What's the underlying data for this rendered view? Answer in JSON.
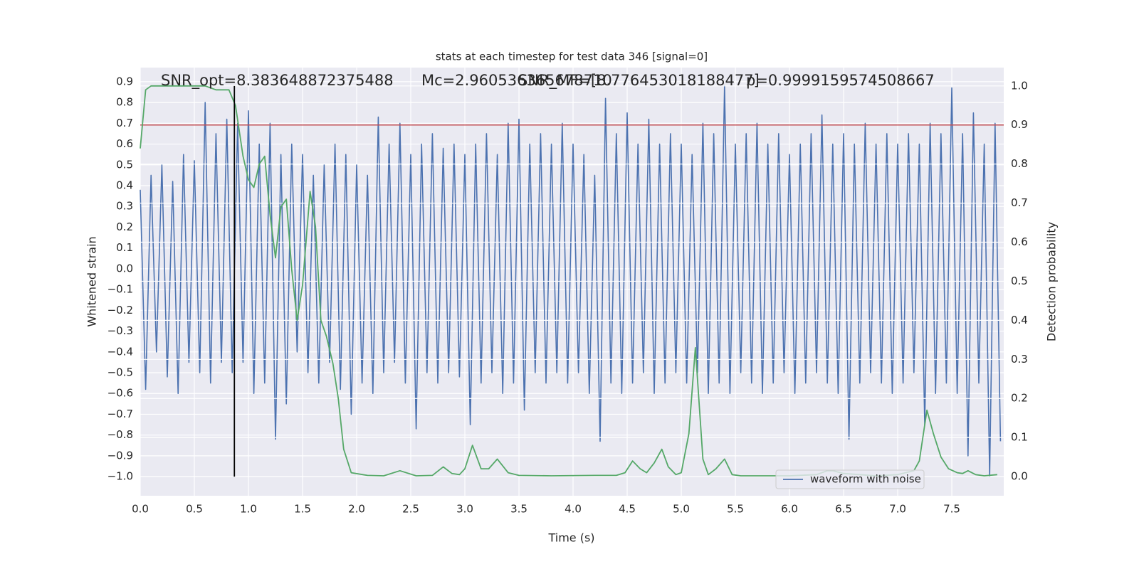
{
  "chart_data": {
    "type": "line",
    "title": "stats at each timestep for test data 346 [signal=0]",
    "xlabel": "Time (s)",
    "ylabel": "Whitened strain",
    "y2label": "Detection probability",
    "annotations": [
      "SNR_opt=8.383648872375488",
      "Mc=2.960536365678710",
      "SNR_MF=[8.776453018188477]",
      "p=0.9999159574508667"
    ],
    "background": "#eaeaf2",
    "grid": true,
    "legend": "lower right",
    "xlim": [
      0,
      7.98
    ],
    "ylim": [
      -1.092,
      0.968
    ],
    "y2lim": [
      -0.049,
      1.047
    ],
    "xticks": [
      {
        "value": 0,
        "label": "0.0"
      },
      0.5,
      {
        "value": 1,
        "label": "1.0"
      },
      1.5,
      {
        "value": 2,
        "label": "2.0"
      },
      2.5,
      {
        "value": 3,
        "label": "3.0"
      },
      3.5,
      {
        "value": 4,
        "label": "4.0"
      },
      4.5,
      {
        "value": 5,
        "label": "5.0"
      },
      5.5,
      {
        "value": 6,
        "label": "6.0"
      },
      6.5,
      {
        "value": 7,
        "label": "7.0"
      },
      7.5
    ],
    "yticks": [
      {
        "value": -1,
        "label": "−1.0"
      },
      {
        "value": -0.9,
        "label": "−0.9"
      },
      {
        "value": -0.8,
        "label": "−0.8"
      },
      {
        "value": -0.7,
        "label": "−0.7"
      },
      {
        "value": -0.6,
        "label": "−0.6"
      },
      {
        "value": -0.5,
        "label": "−0.5"
      },
      {
        "value": -0.4,
        "label": "−0.4"
      },
      {
        "value": -0.3,
        "label": "−0.3"
      },
      {
        "value": -0.2,
        "label": "−0.2"
      },
      {
        "value": -0.1,
        "label": "−0.1"
      },
      {
        "value": 0,
        "label": "0.0"
      },
      0.1,
      0.2,
      0.3,
      0.4,
      0.5,
      0.6,
      0.7,
      0.8,
      0.9
    ],
    "y2ticks": [
      {
        "value": 0,
        "label": "0.0"
      },
      0.1,
      0.2,
      0.3,
      0.4,
      0.5,
      0.6,
      0.7,
      0.8,
      0.9,
      {
        "value": 1,
        "label": "1.0"
      }
    ],
    "hlines": [
      {
        "value": 0.9,
        "axis": "y2",
        "color": "#c44e52"
      }
    ],
    "vlines": [
      {
        "x": 0.87,
        "ymin": 0,
        "ymax": 1,
        "axis": "y2",
        "color": "#000000"
      }
    ],
    "series": [
      {
        "name": "waveform with noise",
        "color": "#4c72b0",
        "axis": "y",
        "x": [
          0,
          0.05,
          0.1,
          0.15,
          0.2,
          0.25,
          0.3,
          0.35,
          0.4,
          0.45,
          0.5,
          0.55,
          0.6,
          0.65,
          0.7,
          0.75,
          0.8,
          0.85,
          0.9,
          0.95,
          1,
          1.05,
          1.1,
          1.15,
          1.2,
          1.25,
          1.3,
          1.35,
          1.4,
          1.45,
          1.5,
          1.55,
          1.6,
          1.65,
          1.7,
          1.75,
          1.8,
          1.85,
          1.9,
          1.95,
          2,
          2.05,
          2.1,
          2.15,
          2.2,
          2.25,
          2.3,
          2.35,
          2.4,
          2.45,
          2.5,
          2.55,
          2.6,
          2.65,
          2.7,
          2.75,
          2.8,
          2.85,
          2.9,
          2.95,
          3,
          3.05,
          3.1,
          3.15,
          3.2,
          3.25,
          3.3,
          3.35,
          3.4,
          3.45,
          3.5,
          3.55,
          3.6,
          3.65,
          3.7,
          3.75,
          3.8,
          3.85,
          3.9,
          3.95,
          4,
          4.05,
          4.1,
          4.15,
          4.2,
          4.25,
          4.3,
          4.35,
          4.4,
          4.45,
          4.5,
          4.55,
          4.6,
          4.65,
          4.7,
          4.75,
          4.8,
          4.85,
          4.9,
          4.95,
          5,
          5.05,
          5.1,
          5.15,
          5.2,
          5.25,
          5.3,
          5.35,
          5.4,
          5.45,
          5.5,
          5.55,
          5.6,
          5.65,
          5.7,
          5.75,
          5.8,
          5.85,
          5.9,
          5.95,
          6,
          6.05,
          6.1,
          6.15,
          6.2,
          6.25,
          6.3,
          6.35,
          6.4,
          6.45,
          6.5,
          6.55,
          6.6,
          6.65,
          6.7,
          6.75,
          6.8,
          6.85,
          6.9,
          6.95,
          7,
          7.05,
          7.1,
          7.15,
          7.2,
          7.25,
          7.3,
          7.35,
          7.4,
          7.45,
          7.5,
          7.55,
          7.6,
          7.65,
          7.7,
          7.75,
          7.8,
          7.85,
          7.9,
          7.95
        ],
        "values": [
          0.38,
          -0.58,
          0.45,
          -0.4,
          0.5,
          -0.52,
          0.42,
          -0.6,
          0.55,
          -0.45,
          0.52,
          -0.5,
          0.8,
          -0.55,
          0.65,
          -0.45,
          0.72,
          -0.5,
          0.7,
          -0.45,
          0.76,
          -0.6,
          0.6,
          -0.55,
          0.7,
          -0.82,
          0.55,
          -0.65,
          0.6,
          -0.4,
          0.55,
          -0.5,
          0.45,
          -0.55,
          0.5,
          -0.45,
          0.6,
          -0.58,
          0.55,
          -0.7,
          0.5,
          -0.55,
          0.45,
          -0.6,
          0.73,
          -0.5,
          0.6,
          -0.45,
          0.7,
          -0.55,
          0.55,
          -0.77,
          0.6,
          -0.5,
          0.65,
          -0.55,
          0.58,
          -0.5,
          0.6,
          -0.52,
          0.55,
          -0.75,
          0.6,
          -0.55,
          0.65,
          -0.5,
          0.55,
          -0.6,
          0.7,
          -0.55,
          0.72,
          -0.68,
          0.6,
          -0.5,
          0.65,
          -0.55,
          0.6,
          -0.5,
          0.7,
          -0.55,
          0.6,
          -0.5,
          0.55,
          -0.6,
          0.45,
          -0.83,
          0.82,
          -0.55,
          0.65,
          -0.6,
          0.75,
          -0.55,
          0.6,
          -0.5,
          0.72,
          -0.6,
          0.6,
          -0.55,
          0.65,
          -0.5,
          0.6,
          -0.55,
          0.55,
          -0.5,
          0.7,
          -0.6,
          0.65,
          -0.55,
          0.88,
          -0.6,
          0.6,
          -0.5,
          0.65,
          -0.55,
          0.7,
          -0.6,
          0.6,
          -0.55,
          0.65,
          -0.5,
          0.55,
          -0.6,
          0.6,
          -0.55,
          0.65,
          -0.5,
          0.74,
          -0.55,
          0.6,
          -0.6,
          0.65,
          -0.82,
          0.6,
          -0.55,
          0.7,
          -0.5,
          0.6,
          -0.55,
          0.65,
          -0.6,
          0.6,
          -0.55,
          0.65,
          -0.5,
          0.6,
          -0.75,
          0.7,
          -0.6,
          0.65,
          -0.55,
          0.87,
          -0.6,
          0.65,
          -0.9,
          0.75,
          -0.55,
          0.6,
          -1.0,
          0.7,
          -0.83
        ]
      },
      {
        "color": "#55a868",
        "axis": "y2",
        "x": [
          0,
          0.05,
          0.1,
          0.3,
          0.6,
          0.7,
          0.82,
          0.88,
          0.95,
          1.0,
          1.05,
          1.1,
          1.15,
          1.2,
          1.25,
          1.3,
          1.35,
          1.4,
          1.45,
          1.5,
          1.57,
          1.62,
          1.67,
          1.72,
          1.78,
          1.83,
          1.88,
          1.95,
          2.1,
          2.25,
          2.4,
          2.55,
          2.7,
          2.8,
          2.88,
          2.95,
          3.0,
          3.07,
          3.15,
          3.22,
          3.3,
          3.4,
          3.5,
          3.8,
          4.2,
          4.4,
          4.48,
          4.55,
          4.62,
          4.68,
          4.75,
          4.82,
          4.88,
          4.95,
          5.0,
          5.07,
          5.13,
          5.2,
          5.25,
          5.32,
          5.4,
          5.47,
          5.55,
          6.0,
          6.25,
          6.35,
          6.4,
          6.5,
          6.8,
          7.0,
          7.15,
          7.2,
          7.27,
          7.33,
          7.4,
          7.47,
          7.55,
          7.6,
          7.65,
          7.72,
          7.8,
          7.92
        ],
        "values": [
          0.84,
          0.99,
          1.0,
          1.0,
          1.0,
          0.99,
          0.99,
          0.95,
          0.82,
          0.76,
          0.74,
          0.8,
          0.82,
          0.67,
          0.56,
          0.69,
          0.71,
          0.53,
          0.4,
          0.49,
          0.73,
          0.64,
          0.4,
          0.36,
          0.29,
          0.2,
          0.07,
          0.01,
          0.003,
          0.002,
          0.015,
          0.002,
          0.003,
          0.025,
          0.008,
          0.005,
          0.02,
          0.08,
          0.02,
          0.02,
          0.045,
          0.01,
          0.003,
          0.002,
          0.003,
          0.003,
          0.01,
          0.04,
          0.02,
          0.01,
          0.035,
          0.07,
          0.025,
          0.005,
          0.01,
          0.11,
          0.33,
          0.045,
          0.005,
          0.02,
          0.045,
          0.005,
          0.002,
          0.002,
          0.005,
          0.015,
          0.015,
          0.008,
          0.002,
          0.005,
          0.015,
          0.04,
          0.17,
          0.11,
          0.05,
          0.02,
          0.01,
          0.008,
          0.015,
          0.005,
          0.002,
          0.005
        ]
      }
    ]
  }
}
